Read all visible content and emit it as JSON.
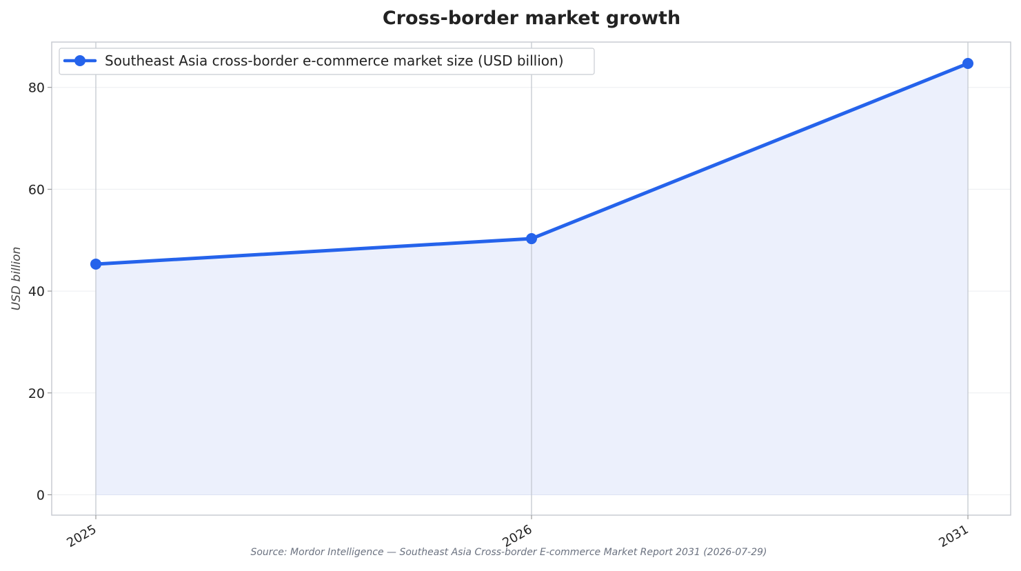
{
  "chart_data": {
    "type": "area",
    "title": "Cross-border market growth",
    "xlabel": "",
    "ylabel": "USD billion",
    "categories": [
      "2025",
      "2026",
      "2031"
    ],
    "series": [
      {
        "name": "Southeast Asia cross-border e-commerce market size (USD billion)",
        "values": [
          45.3,
          50.3,
          84.7
        ],
        "color": "#2563eb",
        "fill_color": "#ecf0fc"
      }
    ],
    "ylim": [
      -4,
      88.9
    ],
    "yticks": [
      0,
      20,
      40,
      60,
      80
    ],
    "grid": true,
    "legend": "top-left",
    "source": "Source: Mordor Intelligence — Southeast Asia Cross-border E-commerce Market Report 2031 (2026-07-29)"
  }
}
